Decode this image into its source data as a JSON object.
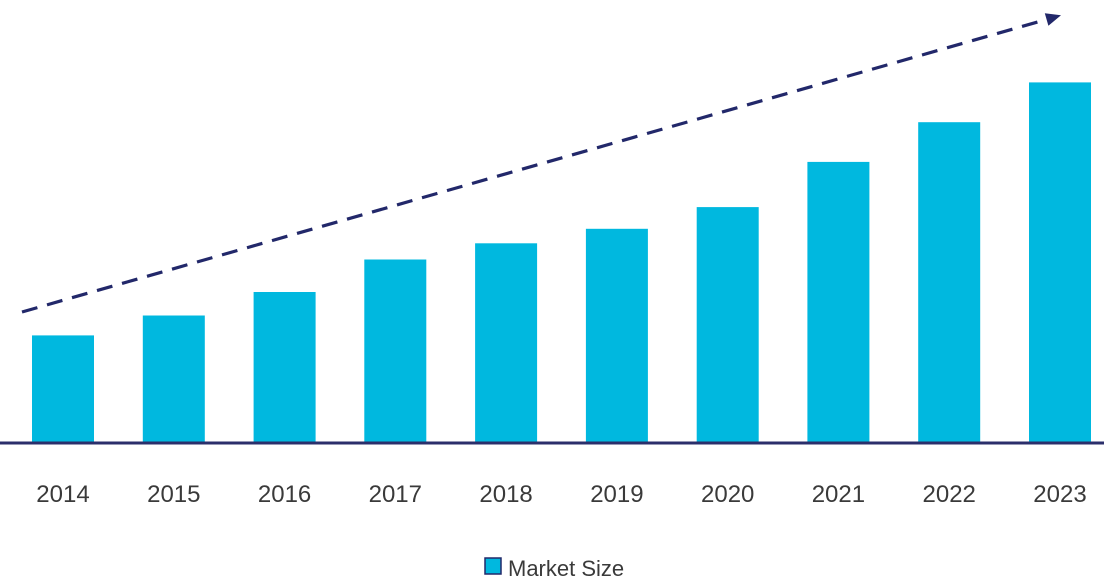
{
  "chart_data": {
    "type": "bar",
    "title": "",
    "xlabel": "",
    "ylabel": "",
    "categories": [
      "2014",
      "2015",
      "2016",
      "2017",
      "2018",
      "2019",
      "2020",
      "2021",
      "2022",
      "2023"
    ],
    "series": [
      {
        "name": "Market Size",
        "values": [
          29.5,
          35,
          41.5,
          50.5,
          55,
          59,
          65,
          77.5,
          88.5,
          99.5
        ]
      }
    ],
    "ylim": [
      0,
      110
    ],
    "grid": false,
    "legend_position": "bottom-center",
    "trend_arrow": "upward dashed trend arrow",
    "colors": {
      "bar": "#00b8df",
      "axis": "#2b2f6b",
      "trend": "#22286a",
      "text": "#3a3a3a"
    }
  }
}
